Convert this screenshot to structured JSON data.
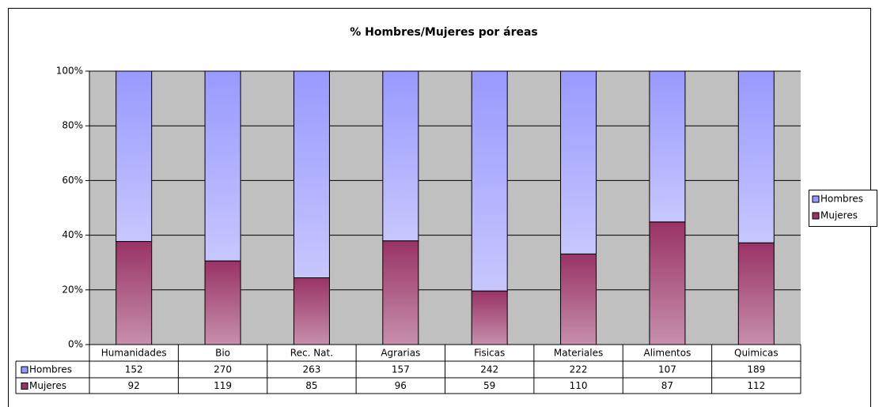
{
  "chart_data": {
    "type": "bar",
    "stacking": "percent",
    "title": "% Hombres/Mujeres por áreas",
    "categories": [
      "Humanidades",
      "Bio",
      "Rec. Nat.",
      "Agrarias",
      "Fisicas",
      "Materiales",
      "Alimentos",
      "Quimicas"
    ],
    "series": [
      {
        "name": "Hombres",
        "color": "#9999ff",
        "values": [
          152,
          270,
          263,
          157,
          242,
          222,
          107,
          189
        ]
      },
      {
        "name": "Mujeres",
        "color": "#993366",
        "values": [
          92,
          119,
          85,
          96,
          59,
          110,
          87,
          112
        ]
      }
    ],
    "ylim": [
      0,
      100
    ],
    "yticks": [
      {
        "value": 0,
        "label": "0%"
      },
      {
        "value": 20,
        "label": "20%"
      },
      {
        "value": 40,
        "label": "40%"
      },
      {
        "value": 60,
        "label": "60%"
      },
      {
        "value": 80,
        "label": "80%"
      },
      {
        "value": 100,
        "label": "100%"
      }
    ],
    "grid": true,
    "legend": "right",
    "data_table": true
  }
}
